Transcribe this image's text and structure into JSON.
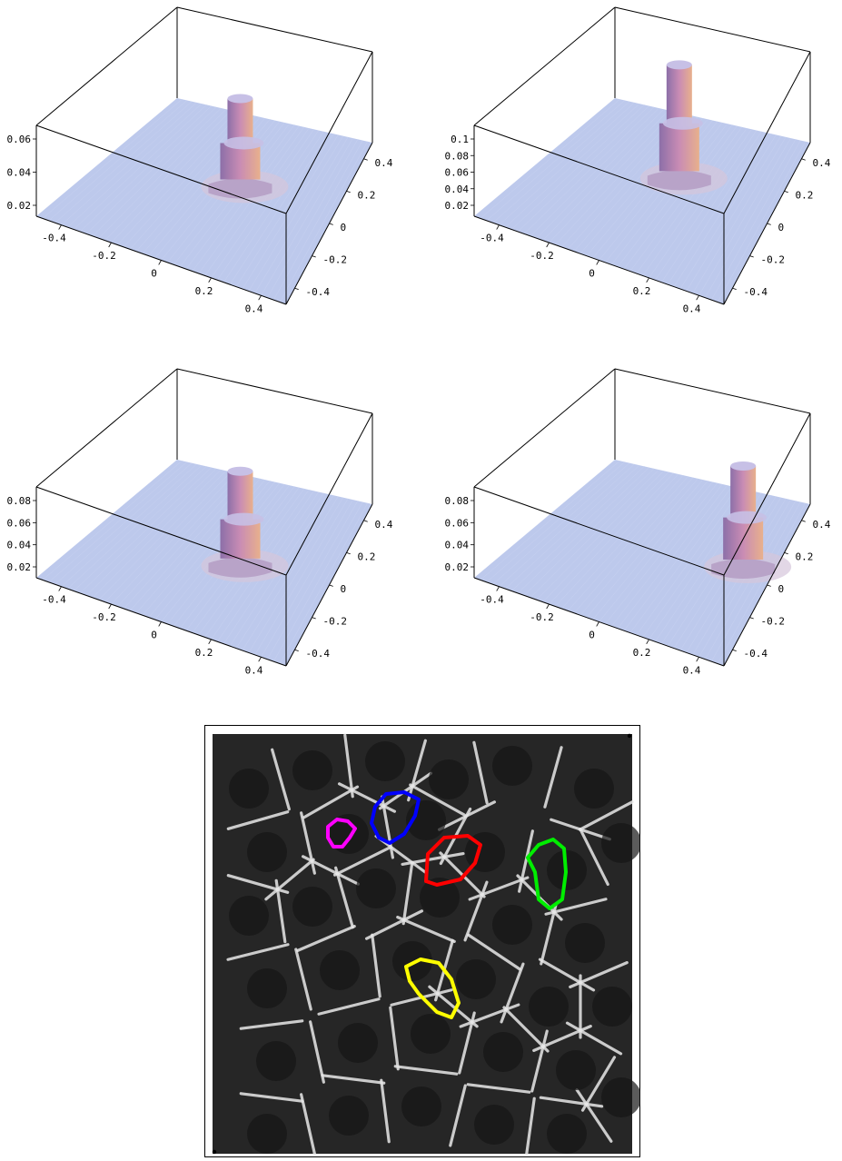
{
  "chart_data": [
    {
      "type": "surface3d",
      "z_ticks": [
        "0.02",
        "0.04",
        "0.06"
      ],
      "x_ticks": [
        "-0.4",
        "-0.2",
        "0",
        "0.2",
        "0.4"
      ],
      "y_ticks": [
        "-0.4",
        "-0.2",
        "0",
        "0.2",
        "0.4"
      ],
      "peak": {
        "x": 0.05,
        "y": 0.1,
        "z": 0.07
      },
      "colors": {
        "base": "#bdc9ec",
        "peak": "#c98cb4"
      }
    },
    {
      "type": "surface3d",
      "z_ticks": [
        "0.02",
        "0.04",
        "0.06",
        "0.08",
        "0.1"
      ],
      "x_ticks": [
        "-0.4",
        "-0.2",
        "0",
        "0.2",
        "0.4"
      ],
      "y_ticks": [
        "-0.4",
        "-0.2",
        "0",
        "0.2",
        "0.4"
      ],
      "peak": {
        "x": 0.03,
        "y": 0.15,
        "z": 0.11
      },
      "colors": {
        "base": "#bdc9ec",
        "peak": "#c98cb4"
      }
    },
    {
      "type": "surface3d",
      "z_ticks": [
        "0.02",
        "0.04",
        "0.06",
        "0.08"
      ],
      "x_ticks": [
        "-0.4",
        "-0.2",
        "0",
        "0.2",
        "0.4"
      ],
      "y_ticks": [
        "-0.4",
        "-0.2",
        "0",
        "0.2",
        "0.4"
      ],
      "peak": {
        "x": 0.1,
        "y": 0.0,
        "z": 0.08
      },
      "colors": {
        "base": "#bdc9ec",
        "peak": "#c98cb4"
      }
    },
    {
      "type": "surface3d",
      "z_ticks": [
        "0.02",
        "0.04",
        "0.06",
        "0.08"
      ],
      "x_ticks": [
        "-0.4",
        "-0.2",
        "0",
        "0.2",
        "0.4"
      ],
      "y_ticks": [
        "-0.4",
        "-0.2",
        "0",
        "0.2",
        "0.4"
      ],
      "peak": {
        "x": 0.35,
        "y": 0.1,
        "z": 0.09
      },
      "colors": {
        "base": "#bdc9ec",
        "peak": "#c98cb4"
      }
    }
  ],
  "micrograph": {
    "cell_outline_colors": [
      "#ff00ff",
      "#0000ff",
      "#ff0000",
      "#00ee00",
      "#ffff00"
    ]
  }
}
